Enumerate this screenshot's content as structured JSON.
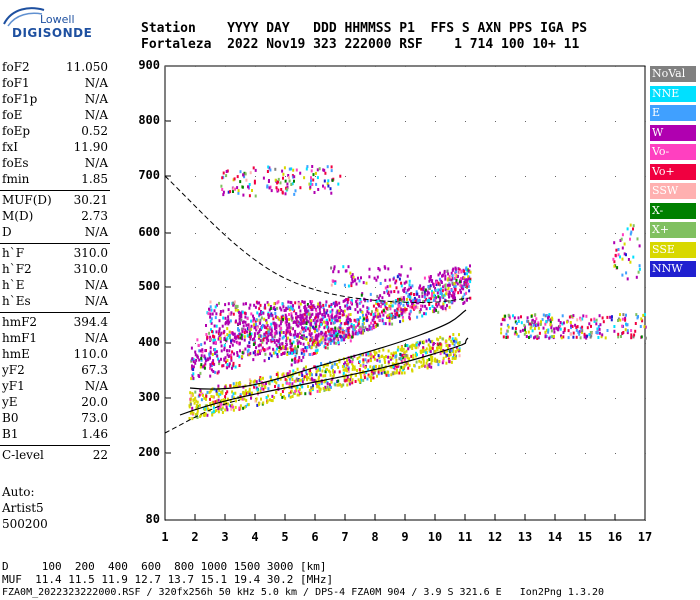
{
  "logo": {
    "top": "Lowell",
    "bottom": "DIGISONDE"
  },
  "header": {
    "row1": "Station    YYYY DAY   DDD HHMMSS P1  FFS S AXN PPS IGA PS",
    "row2": "Fortaleza  2022 Nov19 323 222000 RSF    1 714 100 10+ 11"
  },
  "params": [
    {
      "label": "foF2",
      "value": "11.050"
    },
    {
      "label": "foF1",
      "value": "N/A"
    },
    {
      "label": "foF1p",
      "value": "N/A"
    },
    {
      "label": "foE",
      "value": "N/A"
    },
    {
      "label": "foEp",
      "value": "0.52"
    },
    {
      "label": "fxI",
      "value": "11.90"
    },
    {
      "label": "foEs",
      "value": "N/A"
    },
    {
      "label": "fmin",
      "value": "1.85"
    },
    {
      "label": "MUF(D)",
      "value": "30.21"
    },
    {
      "label": "M(D)",
      "value": "2.73"
    },
    {
      "label": "D",
      "value": "N/A"
    },
    {
      "label": "h`F",
      "value": "310.0"
    },
    {
      "label": "h`F2",
      "value": "310.0"
    },
    {
      "label": "h`E",
      "value": "N/A"
    },
    {
      "label": "h`Es",
      "value": "N/A"
    },
    {
      "label": "hmF2",
      "value": "394.4"
    },
    {
      "label": "hmF1",
      "value": "N/A"
    },
    {
      "label": "hmE",
      "value": "110.0"
    },
    {
      "label": "yF2",
      "value": "67.3"
    },
    {
      "label": "yF1",
      "value": "N/A"
    },
    {
      "label": "yE",
      "value": "20.0"
    },
    {
      "label": "B0",
      "value": "73.0"
    },
    {
      "label": "B1",
      "value": "1.46"
    },
    {
      "label": "C-level",
      "value": "22"
    }
  ],
  "auto": {
    "line1": "Auto:",
    "line2": "Artist5",
    "line3": "500200"
  },
  "legend": [
    {
      "label": "NoVal",
      "color": "#808080"
    },
    {
      "label": "NNE",
      "color": "#00e0ff"
    },
    {
      "label": "E",
      "color": "#40a0ff"
    },
    {
      "label": "W",
      "color": "#b000b0"
    },
    {
      "label": "Vo-",
      "color": "#ff40c0"
    },
    {
      "label": "Vo+",
      "color": "#f00040"
    },
    {
      "label": "SSW",
      "color": "#ffb0b0"
    },
    {
      "label": "X-",
      "color": "#008000"
    },
    {
      "label": "X+",
      "color": "#80c060"
    },
    {
      "label": "SSE",
      "color": "#d8d800"
    },
    {
      "label": "NNW",
      "color": "#2020d0"
    }
  ],
  "axes": {
    "y_ticks": [
      "900",
      "800",
      "700",
      "600",
      "500",
      "400",
      "300",
      "200",
      "80"
    ],
    "x_ticks": [
      "1",
      "2",
      "3",
      "4",
      "5",
      "6",
      "7",
      "8",
      "9",
      "10",
      "11",
      "12",
      "13",
      "14",
      "15",
      "16",
      "17"
    ]
  },
  "footer": {
    "line1": "D     100  200  400  600  800 1000 1500 3000 [km]",
    "line2": "MUF  11.4 11.5 11.9 12.7 13.7 15.1 19.4 30.2 [MHz]",
    "line3": "FZA0M_2022323222000.RSF / 320fx256h 50 kHz 5.0 km / DPS-4 FZA0M 904 / 3.9 S 321.6 E   Ion2Png 1.3.20"
  }
}
